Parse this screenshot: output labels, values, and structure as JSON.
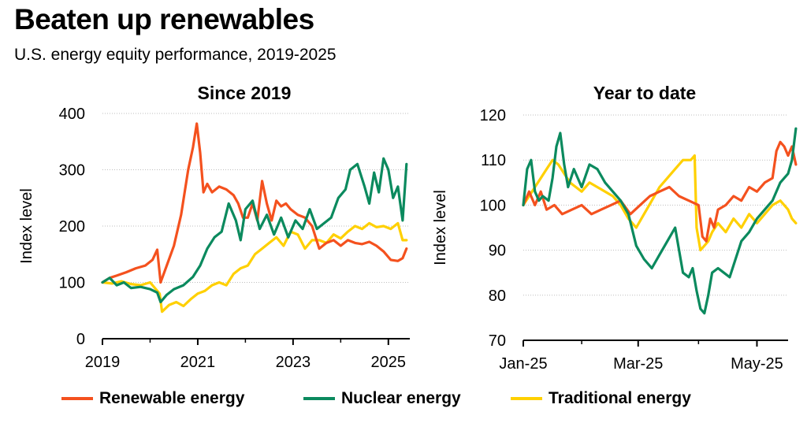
{
  "title": "Beaten up renewables",
  "subtitle": "U.S. energy equity performance, 2019-2025",
  "colors": {
    "renewable": "#F4511E",
    "nuclear": "#0B8A5E",
    "traditional": "#FFD000",
    "grid": "#BDBDBD",
    "axis": "#000000"
  },
  "legend": [
    {
      "name": "Renewable energy",
      "color": "#F4511E"
    },
    {
      "name": "Nuclear energy",
      "color": "#0B8A5E"
    },
    {
      "name": "Traditional energy",
      "color": "#FFD000"
    }
  ],
  "chart_data": [
    {
      "type": "line",
      "title": "Since 2019",
      "xlabel": "",
      "ylabel": "Index level",
      "xlim": [
        2019,
        2025.45
      ],
      "ylim": [
        0,
        400
      ],
      "yticks": [
        0,
        100,
        200,
        300,
        400
      ],
      "xticks": [
        2019,
        2021,
        2023,
        2025
      ],
      "xtick_labels": [
        "2019",
        "2021",
        "2023",
        "2025"
      ],
      "grid": true,
      "series": [
        {
          "name": "Renewable energy",
          "x": [
            2019,
            2019.15,
            2019.3,
            2019.5,
            2019.7,
            2019.9,
            2020.05,
            2020.15,
            2020.22,
            2020.35,
            2020.5,
            2020.65,
            2020.8,
            2020.9,
            2020.98,
            2021.05,
            2021.12,
            2021.2,
            2021.3,
            2021.45,
            2021.6,
            2021.75,
            2021.85,
            2021.95,
            2022.05,
            2022.15,
            2022.25,
            2022.35,
            2022.45,
            2022.55,
            2022.65,
            2022.75,
            2022.85,
            2022.95,
            2023.1,
            2023.25,
            2023.4,
            2023.55,
            2023.7,
            2023.85,
            2024.0,
            2024.15,
            2024.3,
            2024.45,
            2024.6,
            2024.75,
            2024.9,
            2025.05,
            2025.2,
            2025.3,
            2025.38
          ],
          "values": [
            100,
            108,
            112,
            118,
            125,
            130,
            140,
            158,
            100,
            130,
            165,
            220,
            300,
            340,
            382,
            330,
            260,
            275,
            260,
            270,
            265,
            255,
            240,
            215,
            215,
            240,
            210,
            280,
            240,
            210,
            245,
            235,
            240,
            230,
            220,
            215,
            200,
            160,
            170,
            175,
            165,
            175,
            170,
            168,
            172,
            165,
            155,
            140,
            138,
            143,
            160
          ]
        },
        {
          "name": "Nuclear energy",
          "x": [
            2019,
            2019.15,
            2019.3,
            2019.45,
            2019.6,
            2019.8,
            2020.0,
            2020.15,
            2020.22,
            2020.35,
            2020.5,
            2020.7,
            2020.9,
            2021.05,
            2021.2,
            2021.35,
            2021.5,
            2021.65,
            2021.8,
            2021.9,
            2022.0,
            2022.15,
            2022.3,
            2022.45,
            2022.6,
            2022.75,
            2022.9,
            2023.05,
            2023.2,
            2023.35,
            2023.5,
            2023.65,
            2023.8,
            2023.95,
            2024.1,
            2024.2,
            2024.35,
            2024.5,
            2024.6,
            2024.7,
            2024.8,
            2024.9,
            2025.0,
            2025.1,
            2025.2,
            2025.3,
            2025.38
          ],
          "values": [
            100,
            108,
            95,
            100,
            90,
            92,
            88,
            82,
            65,
            78,
            88,
            95,
            110,
            130,
            160,
            180,
            190,
            240,
            210,
            175,
            230,
            245,
            195,
            220,
            185,
            215,
            180,
            210,
            195,
            230,
            195,
            205,
            215,
            250,
            265,
            300,
            310,
            270,
            240,
            295,
            260,
            320,
            300,
            250,
            270,
            210,
            310
          ]
        },
        {
          "name": "Traditional energy",
          "x": [
            2019,
            2019.2,
            2019.4,
            2019.6,
            2019.8,
            2020.0,
            2020.1,
            2020.2,
            2020.25,
            2020.4,
            2020.55,
            2020.7,
            2020.85,
            2021.0,
            2021.15,
            2021.3,
            2021.45,
            2021.6,
            2021.75,
            2021.9,
            2022.05,
            2022.2,
            2022.35,
            2022.5,
            2022.65,
            2022.8,
            2022.95,
            2023.1,
            2023.25,
            2023.4,
            2023.55,
            2023.7,
            2023.85,
            2024.0,
            2024.15,
            2024.3,
            2024.45,
            2024.6,
            2024.75,
            2024.9,
            2025.05,
            2025.2,
            2025.3,
            2025.38
          ],
          "values": [
            100,
            98,
            102,
            97,
            95,
            100,
            90,
            80,
            48,
            60,
            65,
            58,
            70,
            80,
            85,
            95,
            100,
            95,
            115,
            125,
            130,
            150,
            160,
            170,
            180,
            165,
            190,
            185,
            160,
            175,
            175,
            170,
            185,
            178,
            190,
            200,
            195,
            205,
            198,
            200,
            195,
            205,
            175,
            175
          ]
        }
      ]
    },
    {
      "type": "line",
      "title": "Year to date",
      "xlabel": "",
      "ylabel": "Index level",
      "xlim": [
        0,
        136
      ],
      "ylim": [
        70,
        120
      ],
      "yticks": [
        70,
        80,
        90,
        100,
        110,
        120
      ],
      "xticks": [
        0,
        59,
        120
      ],
      "xtick_labels": [
        "Jan-25",
        "Mar-25",
        "May-25"
      ],
      "grid": true,
      "series": [
        {
          "name": "Renewable energy",
          "x": [
            0,
            3,
            6,
            9,
            12,
            16,
            20,
            25,
            30,
            35,
            40,
            45,
            50,
            55,
            60,
            65,
            70,
            75,
            80,
            85,
            90,
            92,
            94,
            96,
            98,
            100,
            104,
            108,
            112,
            116,
            120,
            124,
            128,
            130,
            132,
            134,
            136,
            138,
            140
          ],
          "values": [
            100,
            103,
            100,
            103,
            99,
            100,
            98,
            99,
            100,
            98,
            99,
            100,
            101,
            98,
            100,
            102,
            103,
            104,
            102,
            101,
            100,
            93,
            92,
            97,
            95,
            99,
            100,
            102,
            101,
            104,
            103,
            105,
            106,
            112,
            114,
            113,
            111,
            113,
            109
          ]
        },
        {
          "name": "Nuclear energy",
          "x": [
            0,
            2,
            4,
            6,
            8,
            10,
            13,
            15,
            17,
            19,
            21,
            23,
            26,
            30,
            34,
            38,
            42,
            46,
            50,
            54,
            58,
            62,
            66,
            70,
            74,
            78,
            82,
            85,
            87,
            89,
            91,
            93,
            95,
            97,
            100,
            103,
            106,
            109,
            112,
            116,
            120,
            124,
            128,
            132,
            136,
            138,
            140
          ],
          "values": [
            100,
            108,
            110,
            103,
            101,
            102,
            101,
            106,
            113,
            116,
            109,
            104,
            108,
            104,
            109,
            108,
            105,
            103,
            101,
            98,
            91,
            88,
            86,
            89,
            92,
            95,
            85,
            84,
            86,
            81,
            77,
            76,
            80,
            85,
            86,
            85,
            84,
            88,
            92,
            94,
            97,
            99,
            101,
            105,
            107,
            110,
            117
          ]
        },
        {
          "name": "Traditional energy",
          "x": [
            0,
            3,
            6,
            9,
            12,
            15,
            18,
            21,
            24,
            27,
            30,
            34,
            38,
            42,
            46,
            50,
            54,
            58,
            62,
            66,
            70,
            74,
            78,
            82,
            86,
            88,
            89,
            91,
            93,
            95,
            97,
            100,
            104,
            108,
            112,
            116,
            120,
            124,
            128,
            132,
            136,
            138,
            140
          ],
          "values": [
            100,
            102,
            104,
            106,
            108,
            110,
            109,
            107,
            105,
            104,
            103,
            105,
            104,
            103,
            102,
            100,
            97,
            95,
            98,
            101,
            104,
            106,
            108,
            110,
            110,
            111,
            95,
            90,
            91,
            92,
            94,
            96,
            94,
            97,
            95,
            98,
            96,
            98,
            100,
            101,
            99,
            97,
            96
          ]
        }
      ]
    }
  ]
}
